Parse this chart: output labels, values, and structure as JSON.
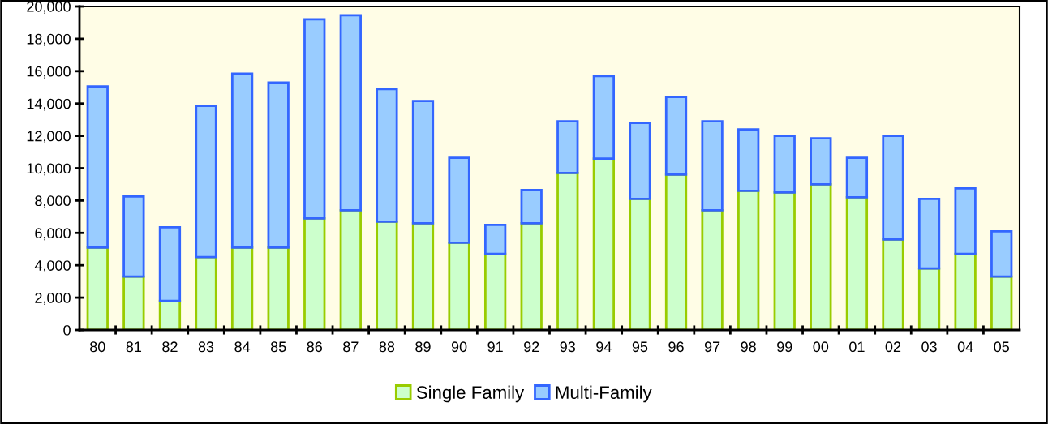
{
  "chart_data": {
    "type": "bar",
    "stacked": true,
    "categories": [
      "80",
      "81",
      "82",
      "83",
      "84",
      "85",
      "86",
      "87",
      "88",
      "89",
      "90",
      "91",
      "92",
      "93",
      "94",
      "95",
      "96",
      "97",
      "98",
      "99",
      "00",
      "01",
      "02",
      "03",
      "04",
      "05"
    ],
    "series": [
      {
        "name": "Single Family",
        "color": "#ccffcc",
        "values": [
          5100,
          3300,
          1800,
          4500,
          5100,
          5100,
          6900,
          7400,
          6700,
          6600,
          5400,
          4700,
          6600,
          9700,
          10600,
          8100,
          9600,
          7400,
          8600,
          8500,
          9000,
          8200,
          5600,
          3800,
          4700,
          3300
        ]
      },
      {
        "name": "Multi-Family",
        "color": "#99ccff",
        "values": [
          9950,
          4950,
          4550,
          9350,
          10750,
          10200,
          12300,
          12050,
          8200,
          7550,
          5250,
          1800,
          2050,
          3200,
          5100,
          4700,
          4800,
          5500,
          3800,
          3500,
          2850,
          2450,
          6400,
          4300,
          4050,
          2800
        ]
      }
    ],
    "ylim": [
      0,
      20000
    ],
    "yticks": [
      {
        "value": 0,
        "label": "0"
      },
      {
        "value": 2000,
        "label": "2,000"
      },
      {
        "value": 4000,
        "label": "4,000"
      },
      {
        "value": 6000,
        "label": "6,000"
      },
      {
        "value": 8000,
        "label": "8,000"
      },
      {
        "value": 10000,
        "label": "10,000"
      },
      {
        "value": 12000,
        "label": "12,000"
      },
      {
        "value": 14000,
        "label": "14,000"
      },
      {
        "value": 16000,
        "label": "16,000"
      },
      {
        "value": 18000,
        "label": "18,000"
      },
      {
        "value": 20000,
        "label": "20,000"
      }
    ],
    "grid": false,
    "legend": "bottom"
  }
}
